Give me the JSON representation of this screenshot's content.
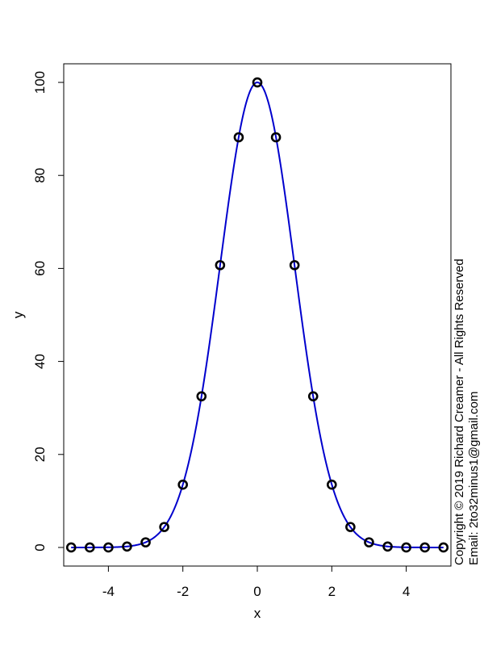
{
  "chart_data": {
    "type": "scatter",
    "xlabel": "x",
    "ylabel": "y",
    "xlim": [
      -5.2,
      5.2
    ],
    "ylim": [
      -4,
      104
    ],
    "x_ticks": [
      -4,
      -2,
      0,
      2,
      4
    ],
    "x_tick_labels": [
      "-4",
      "-2",
      "0",
      "2",
      "4"
    ],
    "y_ticks": [
      0,
      20,
      40,
      60,
      80,
      100
    ],
    "y_tick_labels": [
      "0",
      "20",
      "40",
      "60",
      "80",
      "100"
    ],
    "grid": false,
    "legend": "none",
    "series": [
      {
        "kind": "points",
        "marker": "open-circle",
        "color": "#000000",
        "x": [
          -5,
          -4.5,
          -4,
          -3.5,
          -3,
          -2.5,
          -2,
          -1.5,
          -1,
          -0.5,
          0,
          0.5,
          1,
          1.5,
          2,
          2.5,
          3,
          3.5,
          4,
          4.5,
          5
        ],
        "y": [
          0,
          0,
          0,
          0.2,
          1.1,
          4.4,
          13.5,
          32.5,
          60.7,
          88.2,
          100,
          88.2,
          60.7,
          32.5,
          13.5,
          4.4,
          1.1,
          0.2,
          0,
          0,
          0
        ]
      },
      {
        "kind": "line",
        "color": "#0000cd",
        "curve": "gaussian",
        "amplitude": 100,
        "mean": 0,
        "sd": 1,
        "x_range": [
          -5,
          5
        ]
      }
    ]
  },
  "copyright": {
    "line1": "Copyright © 2019 Richard Creamer - All Rights Reserved",
    "line2": "Email: 2to32minus1@gmail.com"
  }
}
